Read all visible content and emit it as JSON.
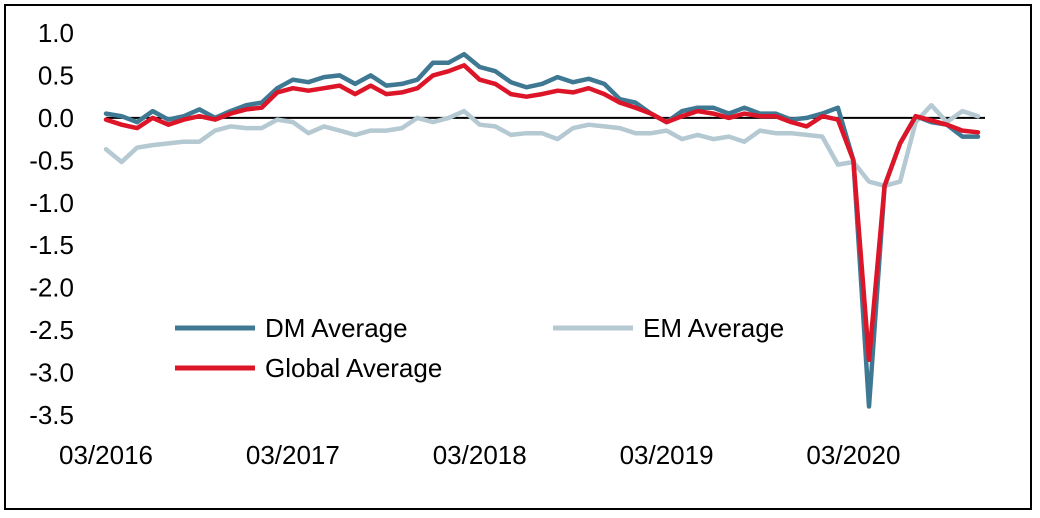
{
  "chart_data": {
    "type": "line",
    "title": "",
    "xlabel": "",
    "ylabel": "",
    "ylim": [
      -3.5,
      1.0
    ],
    "yticks": [
      "1.0",
      "0.5",
      "0.0",
      "-0.5",
      "-1.0",
      "-1.5",
      "-2.0",
      "-2.5",
      "-3.0",
      "-3.5"
    ],
    "xticks": [
      {
        "label": "03/2016",
        "month_index": 0
      },
      {
        "label": "03/2017",
        "month_index": 12
      },
      {
        "label": "03/2018",
        "month_index": 24
      },
      {
        "label": "03/2019",
        "month_index": 36
      },
      {
        "label": "03/2020",
        "month_index": 48
      }
    ],
    "x_start": "03/2016",
    "x_frequency": "monthly",
    "grid": false,
    "zero_line": true,
    "legend_placement": "lower-left",
    "series": [
      {
        "name": "DM Average",
        "color": "#3f7892",
        "values": [
          0.05,
          0.02,
          -0.05,
          0.08,
          -0.02,
          0.02,
          0.1,
          0.0,
          0.08,
          0.15,
          0.18,
          0.35,
          0.45,
          0.42,
          0.48,
          0.5,
          0.4,
          0.5,
          0.38,
          0.4,
          0.45,
          0.65,
          0.65,
          0.75,
          0.6,
          0.55,
          0.42,
          0.36,
          0.4,
          0.48,
          0.42,
          0.46,
          0.4,
          0.22,
          0.18,
          0.05,
          -0.05,
          0.08,
          0.12,
          0.12,
          0.05,
          0.12,
          0.05,
          0.05,
          -0.02,
          0.0,
          0.05,
          0.12,
          -0.5,
          -3.4,
          -0.8,
          -0.3,
          0.02,
          -0.05,
          -0.08,
          -0.22,
          -0.22
        ]
      },
      {
        "name": "EM Average",
        "color": "#b5c9d2",
        "values": [
          -0.37,
          -0.52,
          -0.35,
          -0.32,
          -0.3,
          -0.28,
          -0.28,
          -0.15,
          -0.1,
          -0.12,
          -0.12,
          -0.02,
          -0.05,
          -0.18,
          -0.1,
          -0.15,
          -0.2,
          -0.15,
          -0.15,
          -0.12,
          0.0,
          -0.05,
          0.0,
          0.08,
          -0.08,
          -0.1,
          -0.2,
          -0.18,
          -0.18,
          -0.25,
          -0.12,
          -0.08,
          -0.1,
          -0.12,
          -0.18,
          -0.18,
          -0.15,
          -0.25,
          -0.2,
          -0.25,
          -0.22,
          -0.28,
          -0.15,
          -0.18,
          -0.18,
          -0.2,
          -0.22,
          -0.55,
          -0.52,
          -0.75,
          -0.8,
          -0.75,
          -0.05,
          0.15,
          -0.05,
          0.08,
          0.02
        ]
      },
      {
        "name": "Global Average",
        "color": "#dd1528",
        "values": [
          -0.02,
          -0.08,
          -0.12,
          0.0,
          -0.08,
          -0.02,
          0.02,
          -0.02,
          0.05,
          0.1,
          0.12,
          0.3,
          0.35,
          0.32,
          0.35,
          0.38,
          0.28,
          0.38,
          0.28,
          0.3,
          0.35,
          0.5,
          0.55,
          0.62,
          0.45,
          0.4,
          0.28,
          0.25,
          0.28,
          0.32,
          0.3,
          0.35,
          0.28,
          0.18,
          0.12,
          0.05,
          -0.05,
          0.02,
          0.08,
          0.05,
          0.0,
          0.05,
          0.02,
          0.02,
          -0.05,
          -0.1,
          0.02,
          -0.02,
          -0.5,
          -2.85,
          -0.8,
          -0.3,
          0.02,
          -0.03,
          -0.08,
          -0.15,
          -0.17
        ]
      }
    ]
  }
}
